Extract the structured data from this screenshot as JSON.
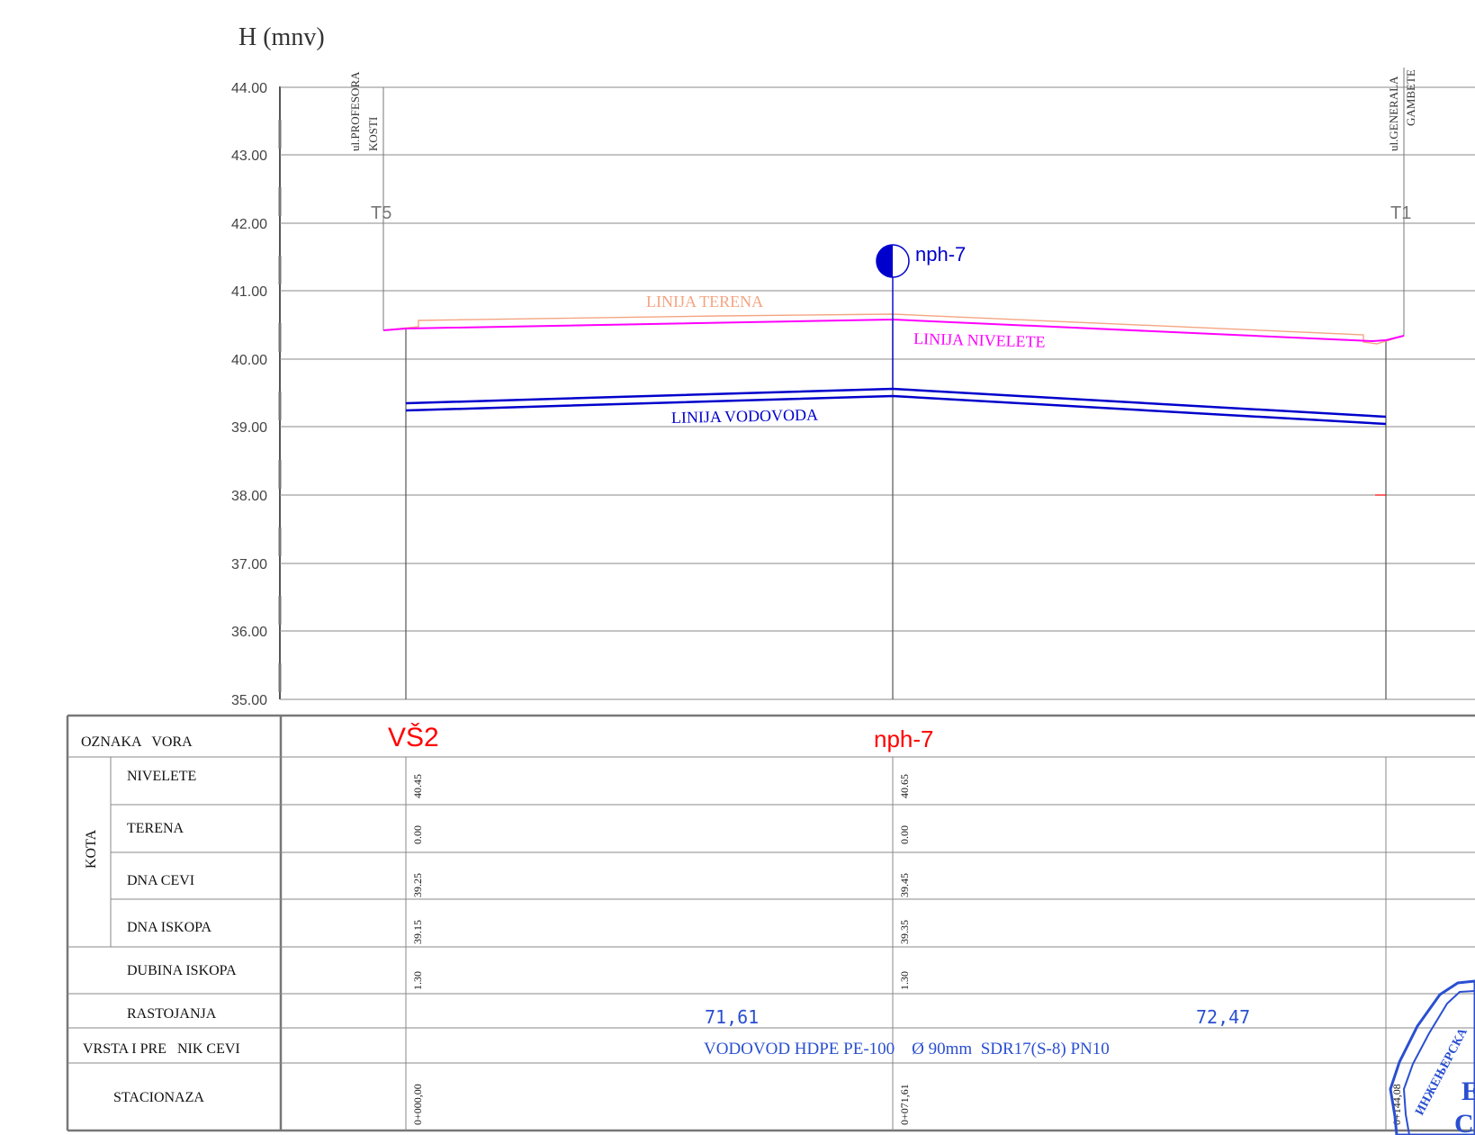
{
  "axis": {
    "title": "H (mnv)",
    "ticks": [
      "44.00",
      "43.00",
      "42.00",
      "41.00",
      "40.00",
      "39.00",
      "38.00",
      "37.00",
      "36.00",
      "35.00"
    ]
  },
  "streets": {
    "left_line1": "ul.PROFESORA",
    "left_line2": "KOSTI",
    "right_line1": "ul.GENERALA",
    "right_line2": "GAMBETE"
  },
  "points": {
    "left": "T5",
    "right": "T1"
  },
  "profile_labels": {
    "terrain": "LINIJA TERENA",
    "grade": "LINIJA NIVELETE",
    "pipe": "LINIJA VODOVODA",
    "hydrant": "nph-7"
  },
  "colors": {
    "terrain": "#f4a582",
    "grade": "#ff00ff",
    "pipe": "#0000cc",
    "node": "#ff0000",
    "grid": "#808080",
    "text": "#000000",
    "stamp": "#2a4fd0"
  },
  "table": {
    "row_labels": {
      "node": "OZNAKA   VORA",
      "kota_group": "KOTA",
      "grade": "NIVELETE",
      "terrain": "TERENA",
      "pipe_bottom": "DNA CEVI",
      "trench_bottom": "DNA ISKOPA",
      "trench_depth": "DUBINA ISKOPA",
      "distances": "RASTOJANJA",
      "pipe_type": "VRSTA I PRE   NIK CEVI",
      "station": "STACIONAZA"
    },
    "columns": [
      {
        "node": "VŠ2",
        "grade": "40.45",
        "terrain": "0.00",
        "pipe_bottom": "39.25",
        "trench_bottom": "39.15",
        "trench_depth": "1.30",
        "station": "0+000,00"
      },
      {
        "node": "nph-7",
        "grade": "40.65",
        "terrain": "0.00",
        "pipe_bottom": "39.45",
        "trench_bottom": "39.35",
        "trench_depth": "1.30",
        "station": "0+071,61"
      },
      {
        "station": "0+144,08"
      }
    ],
    "distances": [
      "71,61",
      "72,47"
    ],
    "pipe_description": "VODOVOD HDPE PE-100    Ø 90mm  SDR17(S-8) PN10"
  },
  "stamp": {
    "ring_text": "ИНЖЕЊЕРСКА",
    "line1": "E",
    "line2": "C"
  }
}
